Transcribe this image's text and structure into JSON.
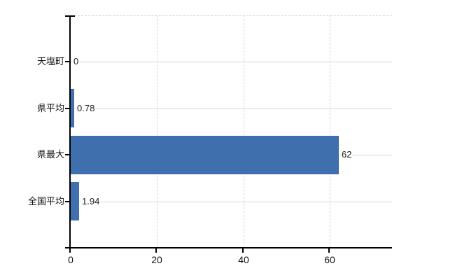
{
  "chart_data": {
    "type": "bar",
    "orientation": "horizontal",
    "title": "",
    "xlabel": "",
    "ylabel": "",
    "categories": [
      "天塩町",
      "県平均",
      "県最大",
      "全国平均"
    ],
    "values": [
      0,
      0.78,
      62,
      1.94
    ],
    "value_labels": [
      "0",
      "0.78",
      "62",
      "1.94"
    ],
    "x_ticks": [
      0,
      20,
      40,
      60
    ],
    "x_tick_labels": [
      "0",
      "20",
      "40",
      "60"
    ],
    "xlim": [
      0,
      74.4
    ],
    "grid": true,
    "legend": "none"
  },
  "colors": {
    "bar": "#3f6fac",
    "grid_horizontal": "#d3dacc",
    "grid_vertical": "#d8d2d5",
    "plot_top_border": "#d8d2d5",
    "axis": "#000000",
    "text": "#111111",
    "background": "#ffffff"
  }
}
